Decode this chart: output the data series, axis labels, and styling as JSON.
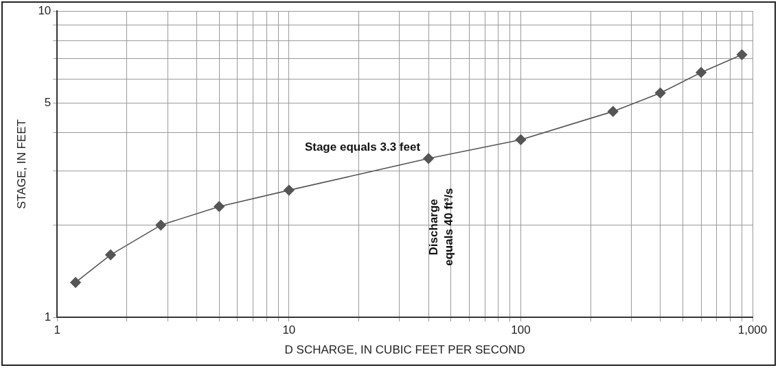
{
  "chart_data": {
    "type": "line",
    "xlabel": "D SCHARGE, IN CUBIC FEET PER SECOND",
    "ylabel": "STAGE, IN FEET",
    "x": [
      1.2,
      1.7,
      2.8,
      5,
      10,
      40,
      100,
      250,
      400,
      600,
      900
    ],
    "series": [
      {
        "color": "#555555",
        "values": [
          1.3,
          1.6,
          2.0,
          2.3,
          2.6,
          3.3,
          3.8,
          4.7,
          5.4,
          6.3,
          7.2
        ]
      }
    ],
    "log": "xy",
    "xlim": [
      1,
      1000
    ],
    "ylim": [
      1,
      10
    ],
    "xticks": [
      1,
      {
        "value": 2,
        "label": null
      },
      {
        "value": 3,
        "label": null
      },
      {
        "value": 4,
        "label": null
      },
      {
        "value": 5,
        "label": null
      },
      {
        "value": 6,
        "label": null
      },
      {
        "value": 7,
        "label": null
      },
      {
        "value": 8,
        "label": null
      },
      {
        "value": 9,
        "label": null
      },
      10,
      {
        "value": 20,
        "label": null
      },
      {
        "value": 30,
        "label": null
      },
      {
        "value": 40,
        "label": null
      },
      {
        "value": 50,
        "label": null
      },
      {
        "value": 60,
        "label": null
      },
      {
        "value": 70,
        "label": null
      },
      {
        "value": 80,
        "label": null
      },
      {
        "value": 90,
        "label": null
      },
      100,
      {
        "value": 200,
        "label": null
      },
      {
        "value": 300,
        "label": null
      },
      {
        "value": 400,
        "label": null
      },
      {
        "value": 500,
        "label": null
      },
      {
        "value": 600,
        "label": null
      },
      {
        "value": 700,
        "label": null
      },
      {
        "value": 800,
        "label": null
      },
      {
        "value": 900,
        "label": null
      },
      {
        "value": 1000,
        "label": "1,000"
      }
    ],
    "yticks": [
      1,
      {
        "value": 2,
        "label": null
      },
      {
        "value": 3,
        "label": null
      },
      {
        "value": 4,
        "label": null
      },
      5,
      {
        "value": 6,
        "label": null
      },
      {
        "value": 7,
        "label": null
      },
      {
        "value": 8,
        "label": null
      },
      {
        "value": 9,
        "label": null
      },
      10
    ],
    "grid": true,
    "legend": false,
    "marker": "diamond",
    "line_style": "solid",
    "annotations": [
      {
        "text": "Stage equals 3.3 feet",
        "x": 40,
        "y": 3.3
      },
      {
        "text": "Discharge equals 40 ft³/s",
        "x": 40,
        "y": 3.3
      }
    ]
  }
}
